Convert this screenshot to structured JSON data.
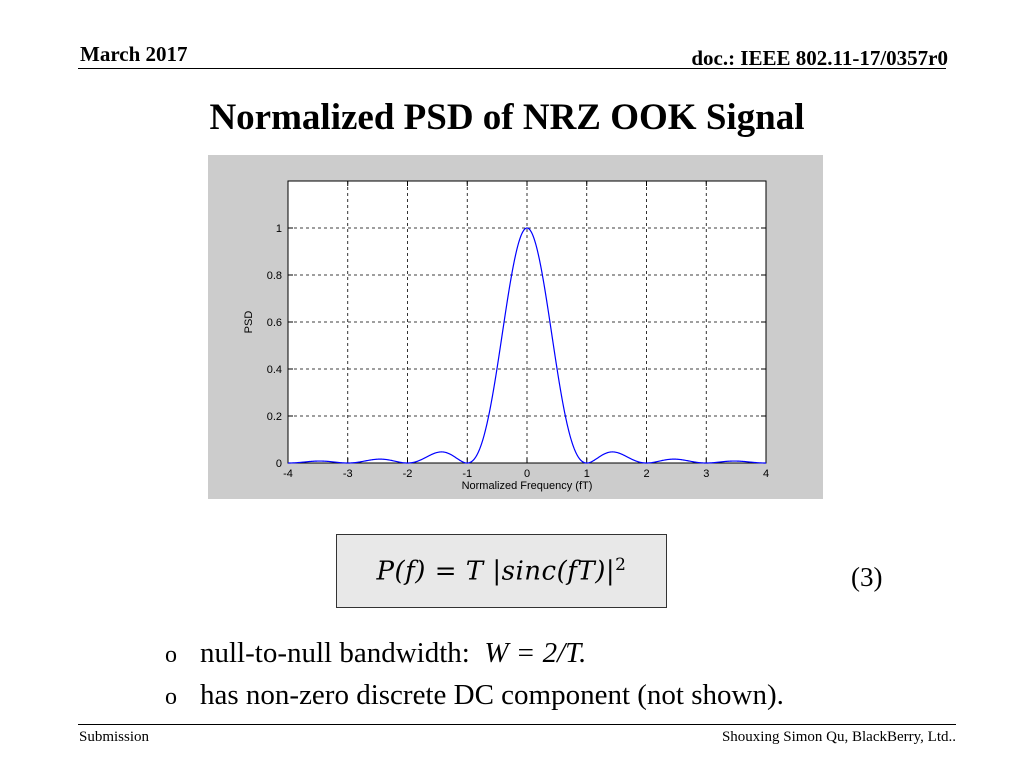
{
  "header": {
    "date": "March 2017",
    "doc": "doc.: IEEE 802.11-17/0357r0"
  },
  "title": "Normalized PSD of NRZ OOK Signal",
  "chart_data": {
    "type": "line",
    "title": "",
    "xlabel": "Normalized Frequency (fT)",
    "ylabel": "PSD",
    "xlim": [
      -4,
      4
    ],
    "ylim": [
      0,
      1.2
    ],
    "xticks": [
      -4,
      -3,
      -2,
      -1,
      0,
      1,
      2,
      3,
      4
    ],
    "yticks": [
      0,
      0.2,
      0.4,
      0.6,
      0.8,
      1
    ],
    "xtick_labels": [
      "-4",
      "-3",
      "-2",
      "-1",
      "0",
      "1",
      "2",
      "3",
      "4"
    ],
    "ytick_labels": [
      "0",
      "0.2",
      "0.4",
      "0.6",
      "0.8",
      "1"
    ],
    "grid": true,
    "series": [
      {
        "name": "PSD",
        "function": "sinc^2(fT)",
        "x_range": [
          -4,
          4
        ],
        "color": "#0000ff"
      }
    ]
  },
  "equation": {
    "lhs": "P(f) = T |sinc(fT)|",
    "exponent": "2",
    "number": "(3)"
  },
  "bullets": [
    {
      "mark": "o",
      "text": "null-to-null bandwidth:",
      "math": "W = 2/T."
    },
    {
      "mark": "o",
      "text": "has non-zero discrete DC component (not shown).",
      "math": ""
    }
  ],
  "footer": {
    "left": "Submission",
    "right": "Shouxing Simon Qu, BlackBerry, Ltd.."
  }
}
